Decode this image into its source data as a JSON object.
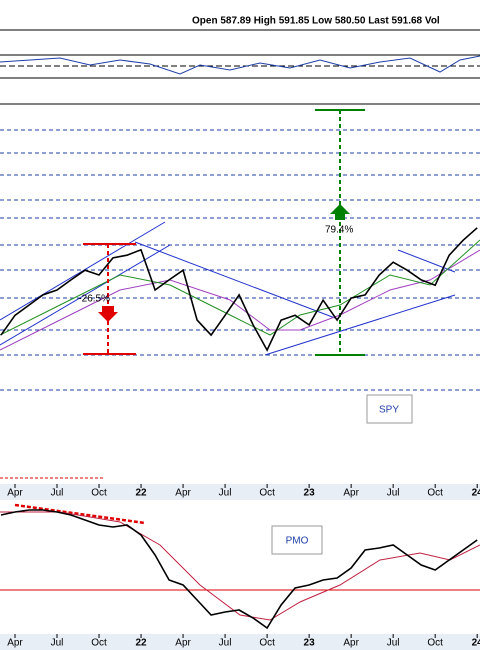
{
  "chart_data": [
    {
      "type": "line",
      "header": "Open 587.89  High 591.85  Low 580.50  Last 591.68  Vol",
      "title": "SPY",
      "annotations": [
        "-26.5%",
        "79.4%"
      ],
      "xlim": [
        1.93,
        36.2
      ],
      "xticks": [
        {
          "value": 3,
          "label": "Apr"
        },
        {
          "value": 6,
          "label": "Jul"
        },
        {
          "value": 9,
          "label": "Oct"
        },
        {
          "value": 12,
          "label": "22"
        },
        {
          "value": 15,
          "label": "Apr"
        },
        {
          "value": 18,
          "label": "Jul"
        },
        {
          "value": 21,
          "label": "Oct"
        },
        {
          "value": 24,
          "label": "23"
        },
        {
          "value": 27,
          "label": "Apr"
        },
        {
          "value": 30,
          "label": "Jul"
        },
        {
          "value": 33,
          "label": "Oct"
        },
        {
          "value": 36,
          "label": "24"
        }
      ],
      "x": [
        2,
        3,
        4,
        5,
        6,
        7,
        8,
        9,
        10,
        11,
        12,
        13,
        14,
        15,
        16,
        17,
        18,
        19,
        20,
        21,
        22,
        23,
        24,
        25,
        26,
        27,
        28,
        29,
        30,
        31,
        32,
        33,
        34,
        35,
        36
      ],
      "ylim": [
        270,
        820
      ],
      "series": [
        {
          "color": "#000000",
          "values": [
            391,
            428,
            447,
            466,
            475,
            494,
            512,
            503,
            535,
            540,
            550,
            475,
            494,
            512,
            419,
            391,
            428,
            466,
            410,
            363,
            419,
            428,
            410,
            456,
            419,
            460,
            466,
            503,
            527,
            512,
            494,
            484,
            540,
            568,
            591
          ]
        }
      ]
    },
    {
      "type": "line",
      "title": "PMO",
      "xlim": [
        1.93,
        36.2
      ],
      "x": [
        2,
        3,
        4,
        5,
        6,
        7,
        8,
        9,
        10,
        11,
        12,
        13,
        14,
        15,
        16,
        17,
        18,
        19,
        20,
        21,
        22,
        23,
        24,
        25,
        26,
        27,
        28,
        29,
        30,
        31,
        32,
        33,
        34,
        35,
        36
      ],
      "ylim": [
        -5,
        9.5
      ],
      "series": [
        {
          "color": "#000000",
          "values": [
            7.5,
            7.8,
            8,
            8,
            7.8,
            7.5,
            7,
            6.5,
            6.3,
            6.5,
            5.5,
            3.5,
            1,
            0.5,
            -1,
            -2.5,
            -2.2,
            -2,
            -2.8,
            -3.8,
            -1.5,
            0.2,
            0.5,
            1,
            1.2,
            2.2,
            4,
            4.2,
            4.5,
            3.5,
            2.5,
            2,
            3,
            4,
            5
          ]
        }
      ]
    }
  ]
}
